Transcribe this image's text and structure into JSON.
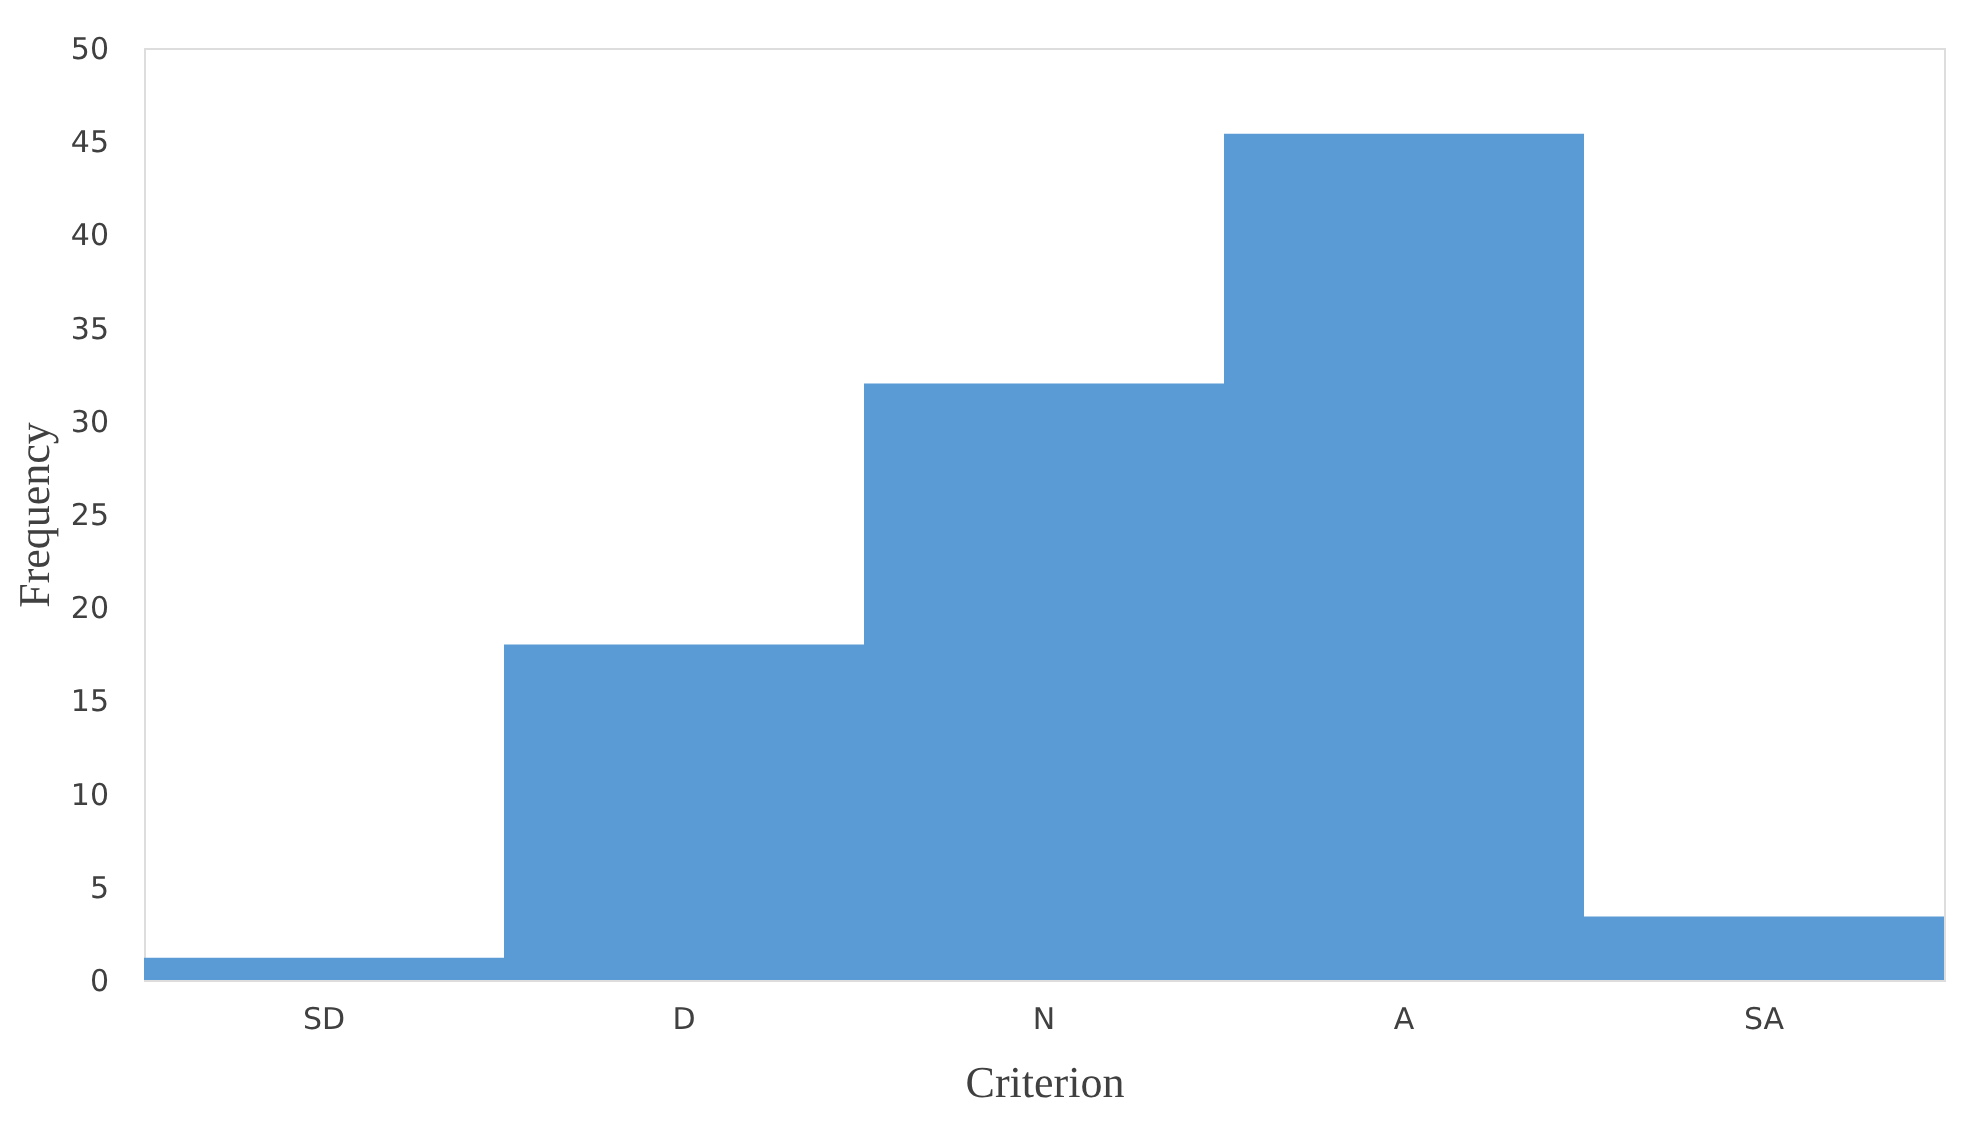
{
  "chart_data": {
    "type": "bar",
    "xlabel": "Criterion",
    "ylabel": "Frequency",
    "categories": [
      "SD",
      "D",
      "N",
      "A",
      "SA"
    ],
    "values": [
      1.2,
      18,
      32,
      45.4,
      3.4
    ],
    "color": "#5b9bd5",
    "ylim": [
      0,
      50
    ],
    "yticks": [
      0,
      5,
      10,
      15,
      20,
      25,
      30,
      35,
      40,
      45,
      50
    ],
    "grid": false
  }
}
